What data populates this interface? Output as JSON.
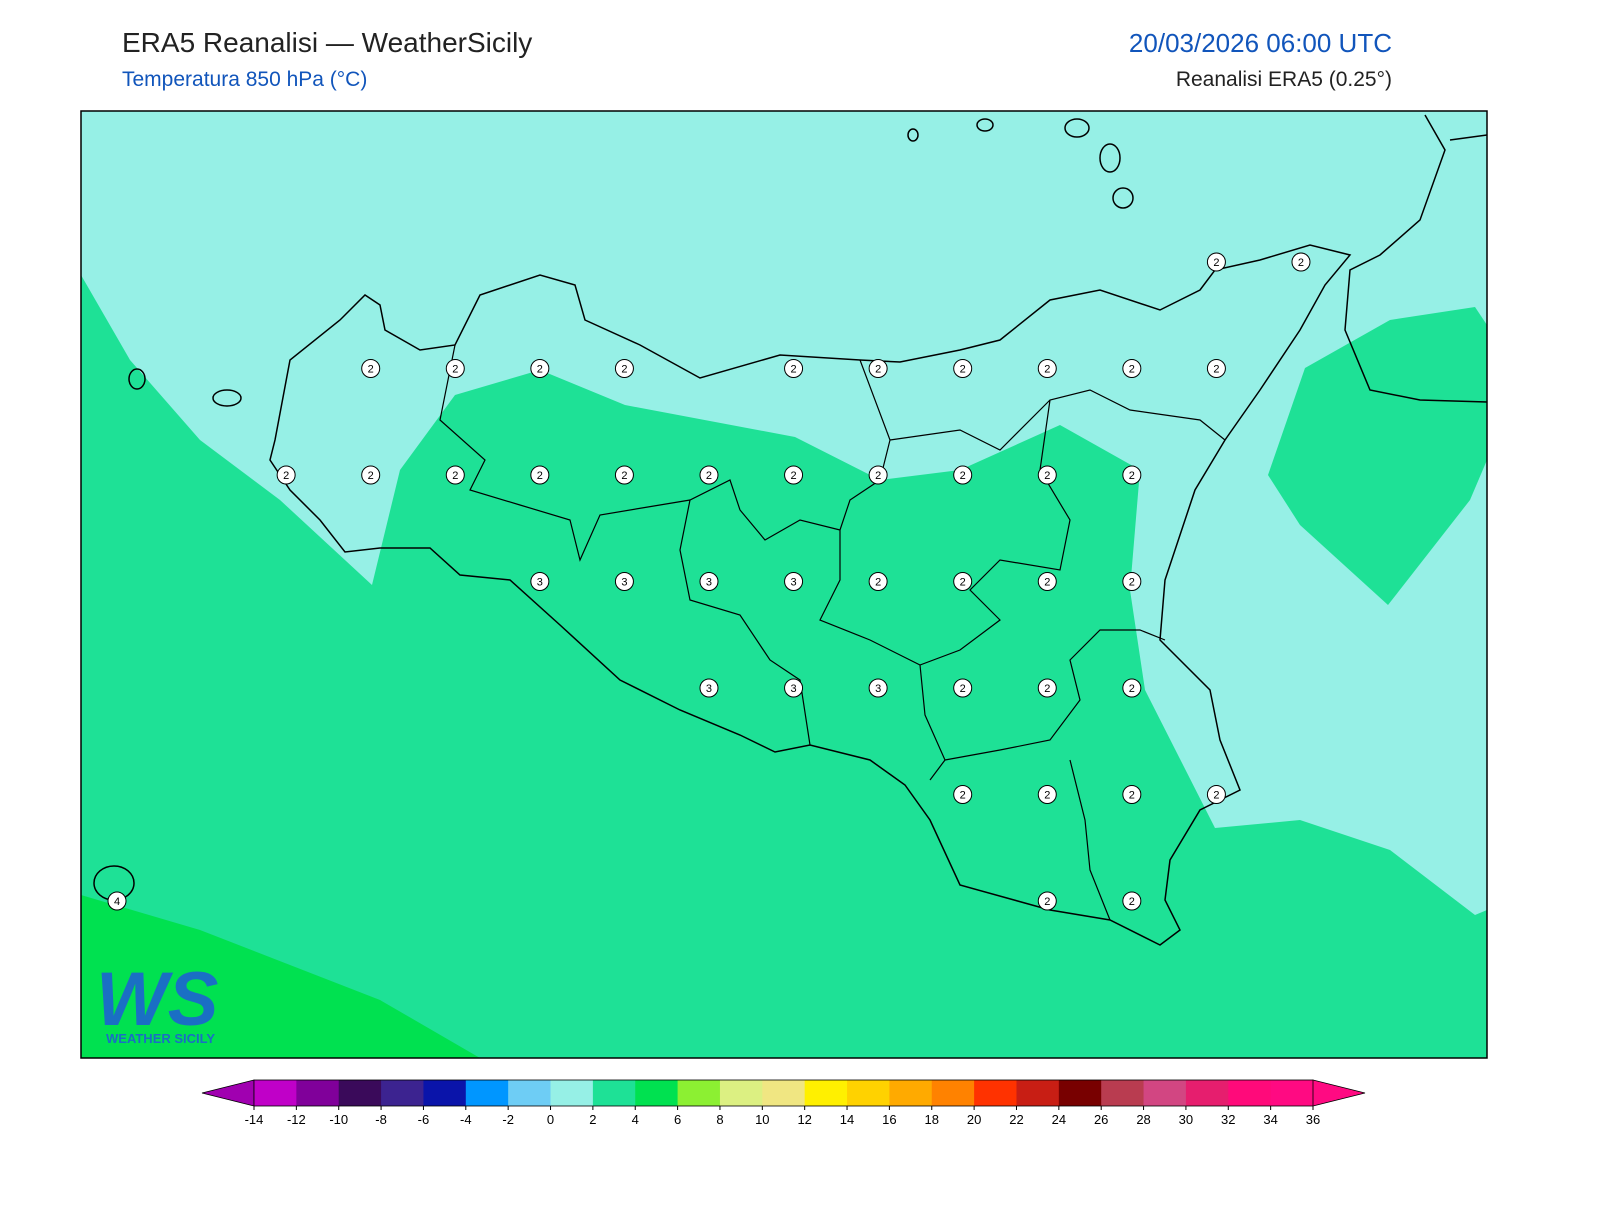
{
  "header": {
    "title": "ERA5 Reanalisi — WeatherSicily",
    "subtitle": "Temperatura 850 hPa (°C)",
    "datetime": "20/03/2026 06:00 UTC",
    "source": "Reanalisi ERA5 (0.25°)"
  },
  "map": {
    "points": {
      "rows": [
        [
          null,
          null,
          null,
          null,
          null,
          null,
          null,
          null,
          null,
          null,
          null,
          null,
          null,
          2,
          2
        ],
        [
          null,
          null,
          null,
          2,
          2,
          2,
          2,
          null,
          2,
          2,
          2,
          2,
          2,
          2,
          null
        ],
        [
          null,
          null,
          2,
          2,
          2,
          2,
          2,
          2,
          2,
          2,
          2,
          2,
          2,
          null,
          null
        ],
        [
          null,
          null,
          null,
          null,
          null,
          3,
          3,
          3,
          3,
          2,
          2,
          2,
          2,
          null,
          null
        ],
        [
          null,
          null,
          null,
          null,
          null,
          null,
          null,
          3,
          3,
          3,
          2,
          2,
          2,
          null,
          null
        ],
        [
          null,
          null,
          null,
          null,
          null,
          null,
          null,
          null,
          null,
          null,
          2,
          2,
          2,
          2,
          null
        ],
        [
          4,
          null,
          null,
          null,
          null,
          null,
          null,
          null,
          null,
          null,
          null,
          2,
          2,
          null,
          null
        ]
      ]
    }
  },
  "colorbar": {
    "ticks": [
      -14,
      -12,
      -10,
      -8,
      -6,
      -4,
      -2,
      0,
      2,
      4,
      6,
      8,
      10,
      12,
      14,
      16,
      18,
      20,
      22,
      24,
      26,
      28,
      30,
      32,
      34,
      36
    ],
    "colors": [
      "#c000c8",
      "#80009a",
      "#3a0a5a",
      "#3c2390",
      "#0a14aa",
      "#0096ff",
      "#6ecdf5",
      "#96f0e6",
      "#1ee196",
      "#00e150",
      "#8cf032",
      "#dcf082",
      "#f0e682",
      "#fff000",
      "#ffd200",
      "#ffaa00",
      "#ff8200",
      "#ff3200",
      "#c81e14",
      "#780000",
      "#b93c50",
      "#d24682",
      "#e61e6e",
      "#ff0a7a",
      "#ff0a82"
    ],
    "under_color": "#a000b0",
    "over_color": "#ff0a82"
  },
  "logo": {
    "mark": "WS",
    "text": "WEATHER SICILY"
  }
}
